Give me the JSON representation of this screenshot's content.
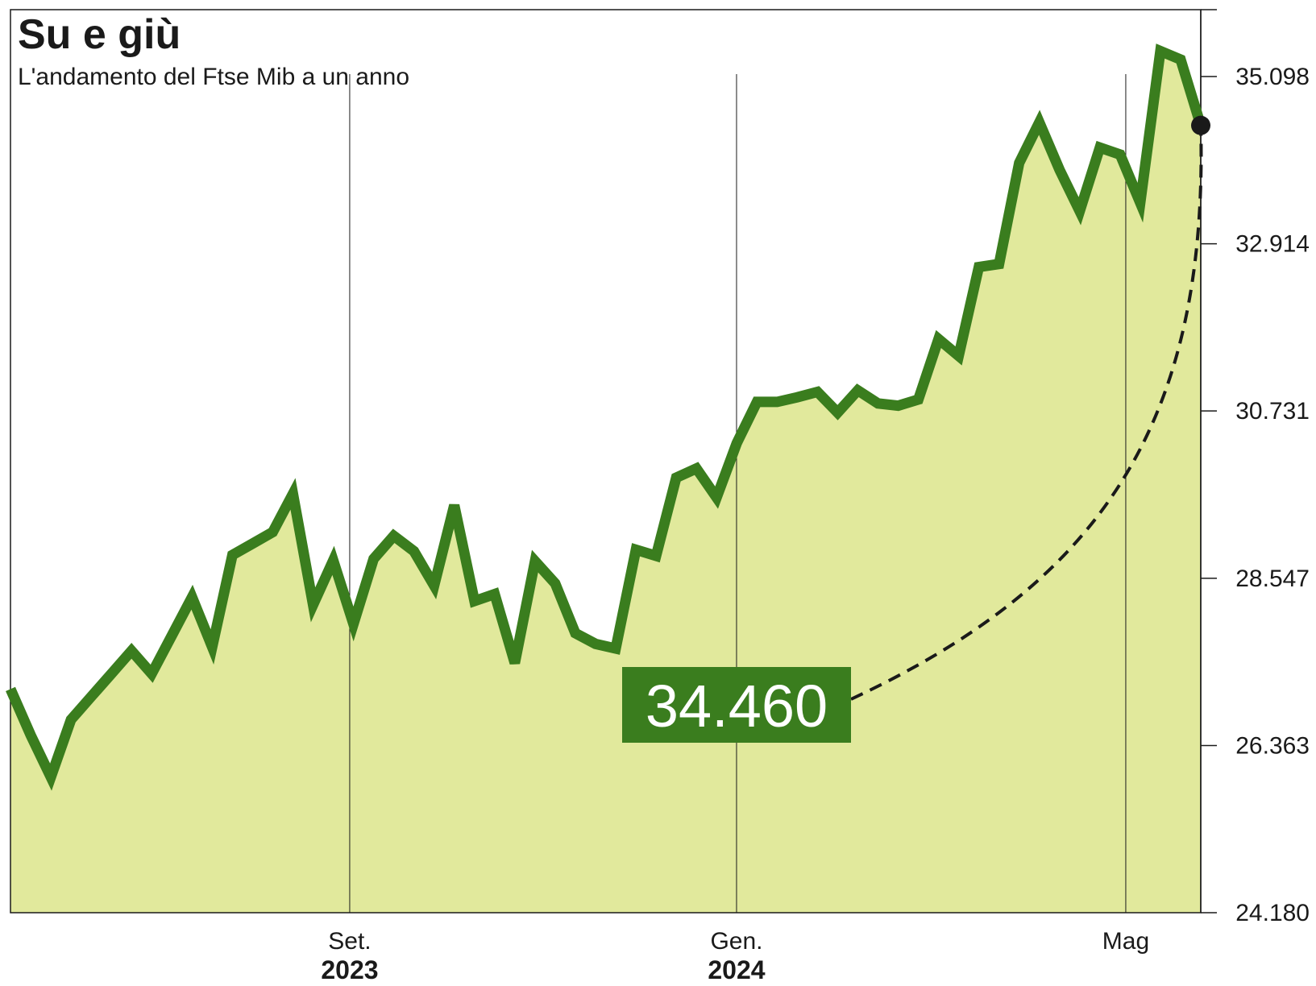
{
  "chart_data": {
    "type": "area",
    "title": "Su e giù",
    "subtitle": "L'andamento del Ftse Mib a un anno",
    "y_ticks": [
      "35.098",
      "32.914",
      "30.731",
      "28.547",
      "26.363",
      "24.180"
    ],
    "y_tick_values": [
      35098,
      32914,
      30731,
      28547,
      26363,
      24180
    ],
    "ylim": [
      24180,
      36000
    ],
    "y_axis_side": "right",
    "x_ticks": [
      {
        "month": "Set.",
        "year": "2023",
        "pos": 0.285
      },
      {
        "month": "Gen.",
        "year": "2024",
        "pos": 0.61
      },
      {
        "month": "Mag",
        "year": "",
        "pos": 0.937
      }
    ],
    "series": [
      {
        "values": [
          27100,
          26500,
          25950,
          26700,
          27000,
          27300,
          27600,
          27300,
          27800,
          28300,
          27650,
          28850,
          29000,
          29150,
          29650,
          28200,
          28780,
          27950,
          28800,
          29100,
          28900,
          28450,
          29500,
          28250,
          28340,
          27440,
          28770,
          28480,
          27830,
          27690,
          27630,
          28920,
          28840,
          29860,
          29980,
          29600,
          30310,
          30850,
          30850,
          30910,
          30980,
          30710,
          31000,
          30830,
          30800,
          30880,
          31670,
          31450,
          32610,
          32650,
          33970,
          34500,
          33880,
          33340,
          34170,
          34080,
          33450,
          35430,
          35320,
          34460
        ],
        "color": "#3a7d1e",
        "fill": "#e1e99c"
      }
    ],
    "annotation": {
      "label": "34.460",
      "value": 34460,
      "style": "dashed-connector"
    },
    "grid": "vertical-month-lines"
  },
  "colors": {
    "line": "#3a7d1e",
    "area": "#e1e99c",
    "callout_bg": "#3a7d1e",
    "callout_text": "#ffffff"
  }
}
